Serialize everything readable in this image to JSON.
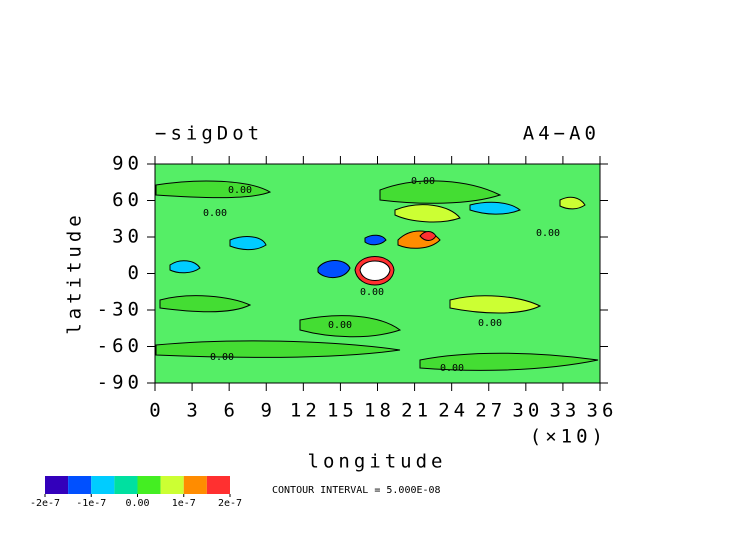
{
  "chart_data": {
    "type": "contour",
    "title": "−sigDot",
    "subtitle": "A4−A0",
    "x_label": "longitude",
    "y_label": "latitude",
    "x_multiplier": "(×10)",
    "xlim": [
      0,
      36
    ],
    "xticks": [
      0,
      3,
      6,
      9,
      12,
      15,
      18,
      21,
      24,
      27,
      30,
      33,
      36
    ],
    "ylim": [
      -90,
      90
    ],
    "yticks": [
      -90,
      -60,
      -30,
      0,
      30,
      60,
      90
    ],
    "background_color": "#55ee66",
    "contour_labels": [
      "0.00",
      "0.00",
      "0.00",
      "0.00",
      "0.00",
      "0.00",
      "0.00",
      "0.00",
      "0.00"
    ],
    "contour_interval": "CONTOUR INTERVAL = 5.000E-08",
    "colorbar": {
      "colors": [
        "#3300bb",
        "#0050ff",
        "#00ccff",
        "#00e0a0",
        "#44ee22",
        "#ccff33",
        "#ff8c00",
        "#ff3030"
      ],
      "lim": [
        -2e-07,
        2e-07
      ],
      "ticks": [
        {
          "value": -2e-07,
          "label": "-2e-7"
        },
        {
          "value": -1e-07,
          "label": "-1e-7"
        },
        {
          "value": 0,
          "label": "0.00"
        },
        {
          "value": 1e-07,
          "label": "1e-7"
        },
        {
          "value": 2e-07,
          "label": "2e-7"
        }
      ]
    }
  }
}
